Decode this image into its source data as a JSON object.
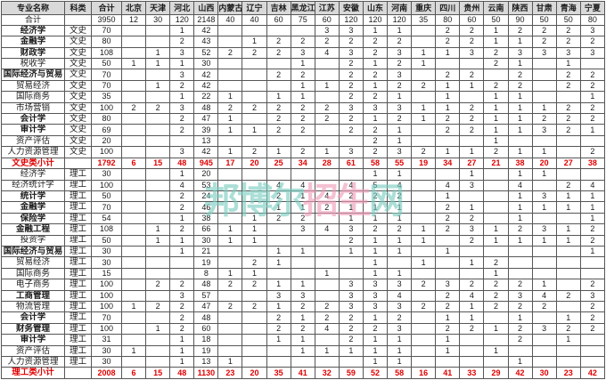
{
  "table": {
    "columns": [
      "专业名称",
      "科类",
      "合计",
      "北京",
      "天津",
      "河北",
      "山西",
      "内蒙古",
      "辽宁",
      "吉林",
      "黑龙江",
      "江苏",
      "安徽",
      "山东",
      "河南",
      "重庆",
      "四川",
      "贵州",
      "云南",
      "陕西",
      "甘肃",
      "青海",
      "宁夏"
    ],
    "rows": [
      {
        "name": "合计",
        "category": "",
        "type": "grand",
        "bold": false,
        "values": [
          "3950",
          "12",
          "30",
          "120",
          "2148",
          "40",
          "40",
          "60",
          "75",
          "60",
          "120",
          "120",
          "120",
          "35",
          "80",
          "60",
          "50",
          "90",
          "50",
          "50",
          "80"
        ]
      },
      {
        "name": "经济学",
        "category": "文史",
        "type": "normal",
        "bold": true,
        "values": [
          "70",
          "",
          "",
          "1",
          "42",
          "",
          "",
          "",
          "",
          "3",
          "3",
          "1",
          "1",
          "",
          "2",
          "2",
          "1",
          "2",
          "2",
          "2",
          "3"
        ]
      },
      {
        "name": "金融学",
        "category": "文史",
        "type": "normal",
        "bold": true,
        "values": [
          "80",
          "",
          "",
          "2",
          "43",
          "",
          "1",
          "2",
          "2",
          "2",
          "2",
          "2",
          "2",
          "",
          "2",
          "2",
          "1",
          "1",
          "2",
          "2",
          "2"
        ]
      },
      {
        "name": "财政学",
        "category": "文史",
        "type": "normal",
        "bold": true,
        "values": [
          "108",
          "",
          "1",
          "3",
          "52",
          "2",
          "2",
          "2",
          "3",
          "4",
          "3",
          "2",
          "3",
          "1",
          "1",
          "3",
          "2",
          "3",
          "3",
          "3",
          "3"
        ]
      },
      {
        "name": "税收学",
        "category": "文史",
        "type": "normal",
        "bold": false,
        "values": [
          "50",
          "1",
          "1",
          "1",
          "30",
          "",
          "",
          "",
          "1",
          "",
          "2",
          "1",
          "2",
          "1",
          "",
          "",
          "2",
          "1",
          "",
          "1",
          ""
        ]
      },
      {
        "name": "国际经济与贸易",
        "category": "文史",
        "type": "normal",
        "bold": true,
        "values": [
          "70",
          "",
          "",
          "3",
          "42",
          "",
          "",
          "2",
          "2",
          "",
          "2",
          "2",
          "3",
          "",
          "2",
          "2",
          "",
          "2",
          "",
          "2",
          "2"
        ]
      },
      {
        "name": "贸易经济",
        "category": "文史",
        "type": "normal",
        "bold": false,
        "values": [
          "70",
          "",
          "1",
          "2",
          "42",
          "",
          "",
          "",
          "1",
          "1",
          "2",
          "1",
          "2",
          "2",
          "1",
          "1",
          "2",
          "2",
          "",
          "2",
          "2"
        ]
      },
      {
        "name": "国际商务",
        "category": "文史",
        "type": "normal",
        "bold": false,
        "values": [
          "35",
          "",
          "",
          "1",
          "22",
          "1",
          "",
          "1",
          "1",
          "",
          "2",
          "2",
          "1",
          "",
          "1",
          "",
          "1",
          "1",
          "",
          "",
          "1"
        ]
      },
      {
        "name": "市场营销",
        "category": "文史",
        "type": "normal",
        "bold": false,
        "values": [
          "100",
          "2",
          "2",
          "3",
          "48",
          "2",
          "2",
          "2",
          "2",
          "2",
          "3",
          "3",
          "3",
          "1",
          "1",
          "2",
          "1",
          "1",
          "1",
          "2",
          "2"
        ]
      },
      {
        "name": "会计学",
        "category": "文史",
        "type": "normal",
        "bold": true,
        "values": [
          "80",
          "",
          "",
          "2",
          "47",
          "1",
          "",
          "2",
          "2",
          "2",
          "2",
          "1",
          "2",
          "1",
          "2",
          "2",
          "1",
          "1",
          "2",
          "2",
          "2"
        ]
      },
      {
        "name": "审计学",
        "category": "文史",
        "type": "normal",
        "bold": true,
        "values": [
          "69",
          "",
          "",
          "2",
          "39",
          "1",
          "1",
          "2",
          "2",
          "",
          "2",
          "2",
          "1",
          "",
          "2",
          "2",
          "1",
          "1",
          "3",
          "2",
          "1"
        ]
      },
      {
        "name": "资产评估",
        "category": "文史",
        "type": "normal",
        "bold": false,
        "values": [
          "20",
          "",
          "",
          "",
          "13",
          "",
          "",
          "",
          "",
          "",
          "",
          "2",
          "1",
          "",
          "",
          "",
          "1",
          "",
          "",
          "",
          ""
        ]
      },
      {
        "name": "人力资源管理",
        "category": "文史",
        "type": "normal",
        "bold": false,
        "values": [
          "100",
          "",
          "",
          "3",
          "42",
          "1",
          "2",
          "1",
          "2",
          "1",
          "3",
          "2",
          "3",
          "2",
          "1",
          "1",
          "2",
          "1",
          "1",
          "",
          "2"
        ]
      },
      {
        "name": "文史类小计",
        "category": "",
        "type": "subtotal",
        "bold": true,
        "values": [
          "1792",
          "6",
          "15",
          "48",
          "945",
          "17",
          "20",
          "25",
          "34",
          "28",
          "61",
          "58",
          "55",
          "19",
          "34",
          "27",
          "21",
          "38",
          "20",
          "27",
          "38"
        ]
      },
      {
        "name": "经济学",
        "category": "理工",
        "type": "normal",
        "bold": false,
        "values": [
          "30",
          "",
          "",
          "1",
          "20",
          "",
          "",
          "",
          "",
          "",
          "",
          "1",
          "1",
          "",
          "",
          "1",
          "",
          "1",
          "1",
          "",
          ""
        ]
      },
      {
        "name": "经济统计学",
        "category": "理工",
        "type": "normal",
        "bold": false,
        "values": [
          "100",
          "",
          "",
          "4",
          "53",
          "",
          "",
          "4",
          "4",
          "",
          "4",
          "5",
          "4",
          "",
          "4",
          "3",
          "",
          "4",
          "",
          "2",
          "4"
        ]
      },
      {
        "name": "统计学",
        "category": "理工",
        "type": "normal",
        "bold": true,
        "values": [
          "50",
          "",
          "",
          "2",
          "24",
          "",
          "",
          "2",
          "1",
          "4",
          "2",
          "2",
          "2",
          "",
          "1",
          "",
          "",
          "1",
          "3",
          "1",
          "1"
        ]
      },
      {
        "name": "金融学",
        "category": "理工",
        "type": "normal",
        "bold": true,
        "values": [
          "70",
          "",
          "",
          "2",
          "46",
          "",
          "",
          "1",
          "1",
          "2",
          "1",
          "1",
          "1",
          "",
          "2",
          "1",
          "",
          "1",
          "1",
          "1",
          "1"
        ]
      },
      {
        "name": "保险学",
        "category": "理工",
        "type": "normal",
        "bold": true,
        "values": [
          "54",
          "",
          "",
          "1",
          "38",
          "",
          "1",
          "2",
          "2",
          "",
          "1",
          "1",
          "1",
          "",
          "2",
          "2",
          "",
          "1",
          "",
          "",
          "1"
        ]
      },
      {
        "name": "金融工程",
        "category": "理工",
        "type": "normal",
        "bold": true,
        "values": [
          "108",
          "",
          "1",
          "2",
          "66",
          "1",
          "1",
          "",
          "3",
          "4",
          "3",
          "2",
          "2",
          "1",
          "2",
          "3",
          "1",
          "2",
          "3",
          "1",
          "2"
        ]
      },
      {
        "name": "投资学",
        "category": "理工",
        "type": "normal",
        "bold": false,
        "values": [
          "50",
          "",
          "1",
          "1",
          "30",
          "1",
          "1",
          "",
          "",
          "",
          "2",
          "1",
          "1",
          "1",
          "",
          "2",
          "1",
          "1",
          "1",
          "1",
          "2"
        ]
      },
      {
        "name": "国际经济与贸易",
        "category": "理工",
        "type": "normal",
        "bold": true,
        "values": [
          "30",
          "",
          "",
          "1",
          "21",
          "",
          "",
          "1",
          "1",
          "",
          "1",
          "1",
          "1",
          "",
          "1",
          "",
          "",
          "",
          "",
          "",
          "1"
        ]
      },
      {
        "name": "贸易经济",
        "category": "理工",
        "type": "normal",
        "bold": false,
        "values": [
          "30",
          "",
          "",
          "",
          "19",
          "",
          "2",
          "1",
          "",
          "",
          "",
          "1",
          "",
          "1",
          "",
          "1",
          "2",
          "",
          "",
          "",
          ""
        ]
      },
      {
        "name": "国际商务",
        "category": "理工",
        "type": "normal",
        "bold": false,
        "values": [
          "15",
          "",
          "",
          "",
          "8",
          "1",
          "1",
          "",
          "",
          "1",
          "",
          "1",
          "1",
          "",
          "",
          "",
          "1",
          "",
          "",
          "",
          ""
        ]
      },
      {
        "name": "电子商务",
        "category": "理工",
        "type": "normal",
        "bold": false,
        "values": [
          "100",
          "",
          "2",
          "2",
          "48",
          "2",
          "2",
          "1",
          "1",
          "",
          "3",
          "3",
          "3",
          "2",
          "3",
          "2",
          "2",
          "2",
          "1",
          "",
          "2"
        ]
      },
      {
        "name": "工商管理",
        "category": "理工",
        "type": "normal",
        "bold": true,
        "values": [
          "100",
          "",
          "",
          "3",
          "57",
          "",
          "",
          "3",
          "3",
          "",
          "3",
          "3",
          "4",
          "",
          "2",
          "4",
          "2",
          "3",
          "4",
          "2",
          "3"
        ]
      },
      {
        "name": "物流管理",
        "category": "理工",
        "type": "normal",
        "bold": false,
        "values": [
          "100",
          "1",
          "2",
          "2",
          "47",
          "2",
          "2",
          "1",
          "2",
          "2",
          "3",
          "3",
          "3",
          "2",
          "2",
          "1",
          "2",
          "2",
          "2",
          "",
          "2"
        ]
      },
      {
        "name": "会计学",
        "category": "理工",
        "type": "normal",
        "bold": true,
        "values": [
          "70",
          "",
          "",
          "2",
          "48",
          "",
          "",
          "2",
          "1",
          "2",
          "2",
          "1",
          "2",
          "",
          "1",
          "1",
          "",
          "1",
          "",
          "1",
          "2"
        ]
      },
      {
        "name": "财务管理",
        "category": "理工",
        "type": "normal",
        "bold": true,
        "values": [
          "100",
          "",
          "1",
          "2",
          "60",
          "",
          "",
          "2",
          "2",
          "4",
          "2",
          "2",
          "3",
          "",
          "2",
          "2",
          "1",
          "2",
          "3",
          "2",
          "2"
        ]
      },
      {
        "name": "审计学",
        "category": "理工",
        "type": "normal",
        "bold": true,
        "values": [
          "31",
          "",
          "",
          "1",
          "18",
          "",
          "",
          "1",
          "1",
          "",
          "2",
          "1",
          "1",
          "",
          "1",
          "",
          "",
          "2",
          "",
          "1",
          ""
        ]
      },
      {
        "name": "资产评估",
        "category": "理工",
        "type": "normal",
        "bold": false,
        "values": [
          "30",
          "1",
          "",
          "1",
          "19",
          "",
          "",
          "",
          "1",
          "1",
          "1",
          "1",
          "1",
          "",
          "1",
          "",
          "1",
          "",
          "",
          "",
          ""
        ]
      },
      {
        "name": "人力资源管理",
        "category": "理工",
        "type": "normal",
        "bold": false,
        "values": [
          "30",
          "",
          "",
          "1",
          "13",
          "1",
          "",
          "",
          "",
          "",
          "",
          "1",
          "1",
          "",
          "",
          "",
          "",
          "1",
          "",
          "",
          ""
        ]
      },
      {
        "name": "理工类小计",
        "category": "",
        "type": "subtotal",
        "bold": true,
        "values": [
          "2008",
          "6",
          "15",
          "48",
          "1130",
          "23",
          "20",
          "35",
          "41",
          "32",
          "59",
          "52",
          "58",
          "16",
          "41",
          "33",
          "29",
          "42",
          "30",
          "23",
          "42"
        ]
      }
    ]
  },
  "watermark": {
    "text": "邦博尔招生网",
    "chars": [
      {
        "ch": "邦",
        "color": "teal"
      },
      {
        "ch": "博",
        "color": "teal"
      },
      {
        "ch": "尔",
        "color": "teal"
      },
      {
        "ch": "招",
        "color": "pink"
      },
      {
        "ch": "生",
        "color": "pink"
      },
      {
        "ch": "网",
        "color": "teal"
      }
    ]
  },
  "colors": {
    "header_bg": "#d9d9d9",
    "subtotal_text": "#e00000",
    "grid_line": "#565656",
    "watermark_teal": "#79ccc0",
    "watermark_pink": "#ee9cb7"
  }
}
